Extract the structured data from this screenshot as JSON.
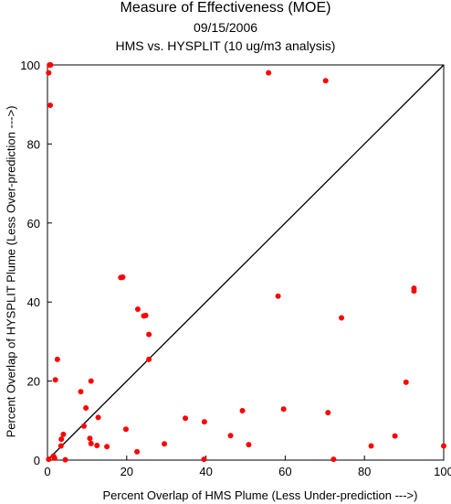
{
  "header": {
    "title": "Measure of Effectiveness (MOE)",
    "date": "09/15/2006",
    "subtitle": "HMS vs. HYSPLIT  (10 ug/m3 analysis)"
  },
  "chart_data": {
    "type": "scatter",
    "xlabel": "Percent Overlap of HMS Plume (Less Under-prediction --->)",
    "ylabel": "Percent Overlap of HYSPLIT Plume (Less Over-prediction --->)",
    "xlim": [
      0,
      100
    ],
    "ylim": [
      0,
      100
    ],
    "xticks": [
      0,
      20,
      40,
      60,
      80,
      100
    ],
    "yticks": [
      0,
      20,
      40,
      60,
      80,
      100
    ],
    "reference_line": {
      "from": [
        0,
        0
      ],
      "to": [
        100,
        100
      ],
      "color": "#000000"
    },
    "marker_color": "#ff0000",
    "grid": false,
    "points": [
      {
        "x": 0.5,
        "y": 100
      },
      {
        "x": 0.8,
        "y": 100
      },
      {
        "x": 0.3,
        "y": 98
      },
      {
        "x": 0.7,
        "y": 89.8
      },
      {
        "x": 55.8,
        "y": 98
      },
      {
        "x": 70.2,
        "y": 96
      },
      {
        "x": 18.5,
        "y": 46.2
      },
      {
        "x": 19.0,
        "y": 46.3
      },
      {
        "x": 58.2,
        "y": 41.5
      },
      {
        "x": 92.5,
        "y": 43.5
      },
      {
        "x": 92.5,
        "y": 42.8
      },
      {
        "x": 22.8,
        "y": 38.2
      },
      {
        "x": 24.3,
        "y": 36.5
      },
      {
        "x": 24.8,
        "y": 36.6
      },
      {
        "x": 74.2,
        "y": 36.0
      },
      {
        "x": 25.6,
        "y": 31.8
      },
      {
        "x": 2.5,
        "y": 25.5
      },
      {
        "x": 25.6,
        "y": 25.5
      },
      {
        "x": 2.0,
        "y": 20.3
      },
      {
        "x": 11.0,
        "y": 20.0
      },
      {
        "x": 90.5,
        "y": 19.7
      },
      {
        "x": 8.4,
        "y": 17.3
      },
      {
        "x": 9.7,
        "y": 13.2
      },
      {
        "x": 59.6,
        "y": 12.9
      },
      {
        "x": 49.2,
        "y": 12.5
      },
      {
        "x": 70.8,
        "y": 12.0
      },
      {
        "x": 12.8,
        "y": 10.8
      },
      {
        "x": 34.8,
        "y": 10.6
      },
      {
        "x": 39.6,
        "y": 9.7
      },
      {
        "x": 9.2,
        "y": 8.6
      },
      {
        "x": 19.8,
        "y": 7.8
      },
      {
        "x": 4.0,
        "y": 6.5
      },
      {
        "x": 46.2,
        "y": 6.2
      },
      {
        "x": 87.7,
        "y": 6.1
      },
      {
        "x": 3.5,
        "y": 5.3
      },
      {
        "x": 10.7,
        "y": 5.5
      },
      {
        "x": 11.0,
        "y": 4.2
      },
      {
        "x": 29.5,
        "y": 4.1
      },
      {
        "x": 50.8,
        "y": 3.9
      },
      {
        "x": 3.4,
        "y": 3.6
      },
      {
        "x": 12.5,
        "y": 3.7
      },
      {
        "x": 15.0,
        "y": 3.4
      },
      {
        "x": 81.7,
        "y": 3.6
      },
      {
        "x": 100.0,
        "y": 3.6
      },
      {
        "x": 22.6,
        "y": 2.1
      },
      {
        "x": 1.5,
        "y": 1.0
      },
      {
        "x": 1.8,
        "y": 0.5
      },
      {
        "x": 0.3,
        "y": 0.2
      },
      {
        "x": 4.5,
        "y": 0.1
      },
      {
        "x": 39.5,
        "y": 0.2
      },
      {
        "x": 72.2,
        "y": 0.2
      }
    ]
  }
}
